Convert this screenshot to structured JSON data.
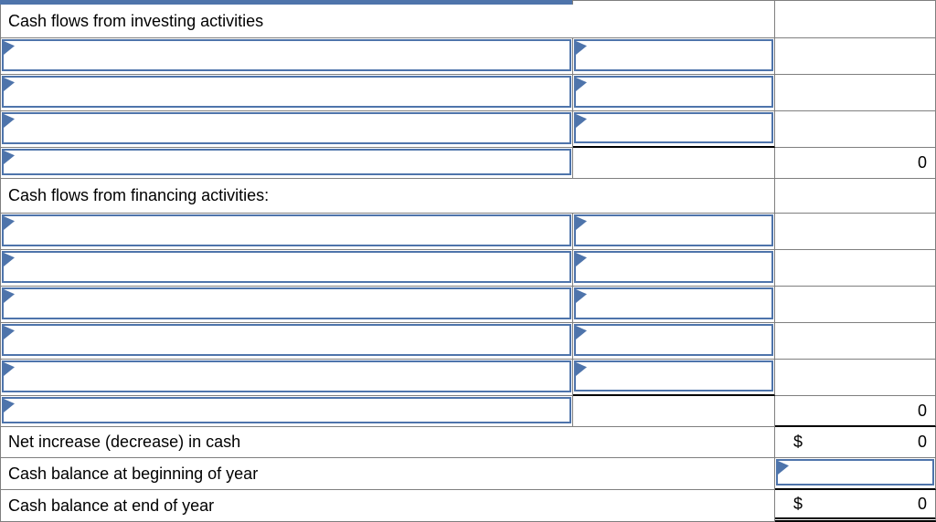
{
  "statement": {
    "investing": {
      "header": "Cash flows from investing activities",
      "input_rows": 3,
      "total": "0"
    },
    "financing": {
      "header": "Cash flows from financing activities:",
      "input_rows": 5,
      "total": "0"
    },
    "net_increase": {
      "label": "Net increase (decrease) in cash",
      "currency": "$",
      "value": "0"
    },
    "beginning_balance": {
      "label": "Cash balance at beginning of year",
      "input_value": ""
    },
    "ending_balance": {
      "label": "Cash balance at end of year",
      "currency": "$",
      "value": "0"
    }
  },
  "icons": {
    "dropdown_marker": "blue triangle flag at top-left of each fill-in cell"
  },
  "colors": {
    "input_border_blue": "#4e74ab",
    "grid_gray": "#7f7f7f",
    "sum_line_black": "#000000"
  }
}
